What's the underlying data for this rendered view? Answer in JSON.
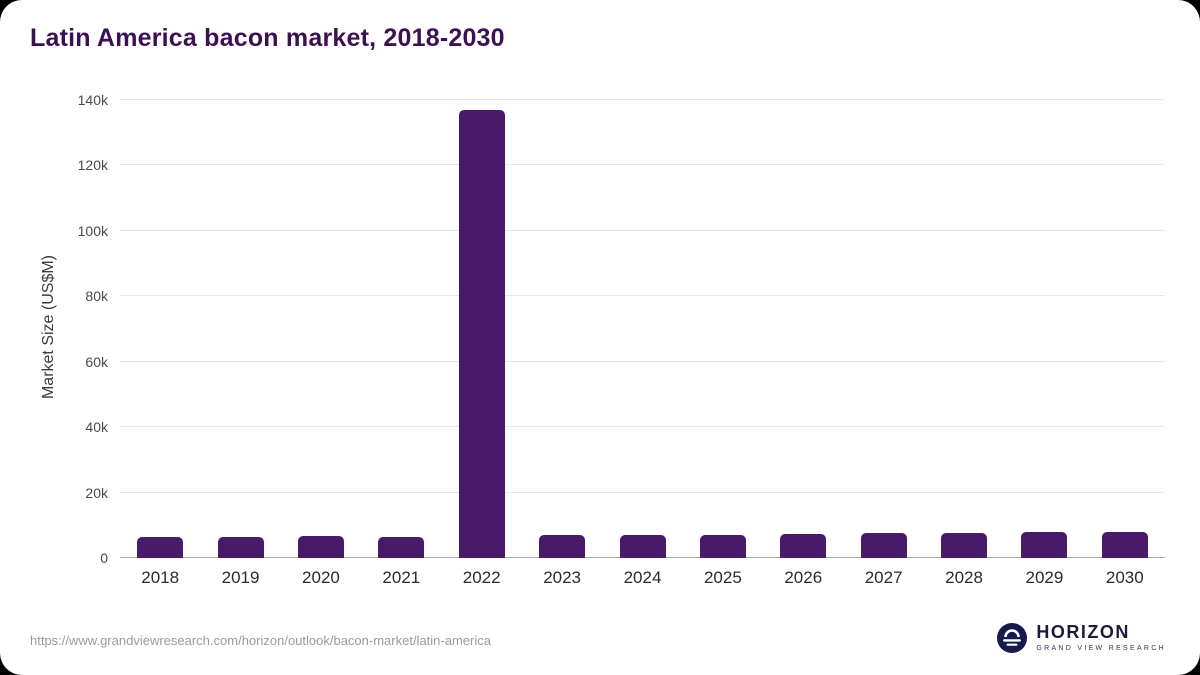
{
  "title": "Latin America bacon market, 2018-2030",
  "footer": {
    "source_url": "https://www.grandviewresearch.com/horizon/outlook/bacon-market/latin-america",
    "logo_title": "HORIZON",
    "logo_subtitle": "GRAND VIEW RESEARCH"
  },
  "colors": {
    "bar": "#4a1a6a",
    "title": "#3d1056",
    "gridline": "#e7e7e7",
    "zero_line": "#aeaeae",
    "logo_circle": "#171a4d"
  },
  "chart_data": {
    "type": "bar",
    "title": "Latin America bacon market, 2018-2030",
    "categories": [
      "2018",
      "2019",
      "2020",
      "2021",
      "2022",
      "2023",
      "2024",
      "2025",
      "2026",
      "2027",
      "2028",
      "2029",
      "2030"
    ],
    "values": [
      6300,
      6400,
      6600,
      6500,
      137000,
      6900,
      7000,
      7100,
      7300,
      7500,
      7600,
      7800,
      7900
    ],
    "xlabel": "",
    "ylabel": "Market Size (US$M)",
    "ylim": [
      0,
      140000
    ],
    "yticks": [
      0,
      20000,
      40000,
      60000,
      80000,
      100000,
      120000,
      140000
    ],
    "ytick_labels": [
      "0",
      "20k",
      "40k",
      "60k",
      "80k",
      "100k",
      "120k",
      "140k"
    ],
    "grid": true,
    "legend": "none"
  }
}
